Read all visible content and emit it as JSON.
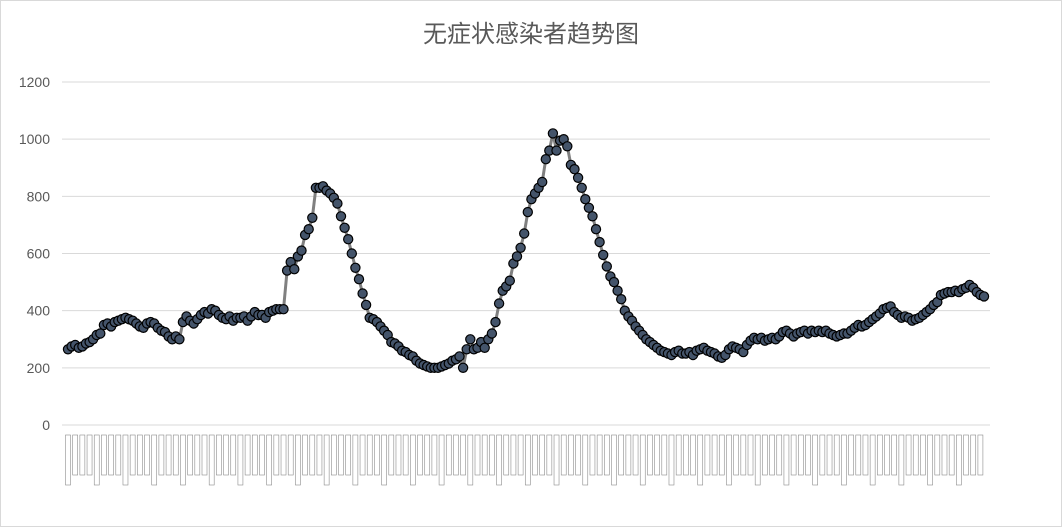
{
  "chart_data": {
    "type": "line",
    "title": "无症状感染者趋势图",
    "xlabel": "",
    "ylabel": "",
    "ylim": [
      0,
      1200
    ],
    "yticks": [
      0,
      200,
      400,
      600,
      800,
      1000,
      1200
    ],
    "grid": true,
    "legend": "none",
    "colors": {
      "line": "#808080",
      "marker_fill": "#44546a",
      "marker_edge": "#000000",
      "grid": "#d9d9d9",
      "text": "#595959"
    },
    "series": [
      {
        "values": [
          265,
          275,
          280,
          270,
          275,
          285,
          290,
          300,
          315,
          320,
          350,
          355,
          345,
          360,
          365,
          370,
          375,
          370,
          365,
          355,
          345,
          340,
          355,
          360,
          355,
          340,
          330,
          325,
          310,
          300,
          310,
          300,
          360,
          380,
          365,
          355,
          370,
          385,
          395,
          390,
          405,
          400,
          385,
          375,
          370,
          380,
          365,
          375,
          375,
          380,
          365,
          380,
          395,
          385,
          385,
          375,
          395,
          400,
          405,
          405,
          405,
          540,
          570,
          545,
          590,
          610,
          665,
          685,
          725,
          830,
          830,
          835,
          820,
          810,
          795,
          775,
          730,
          690,
          650,
          600,
          550,
          510,
          460,
          420,
          375,
          370,
          360,
          345,
          330,
          315,
          290,
          285,
          275,
          260,
          255,
          245,
          240,
          225,
          215,
          210,
          205,
          200,
          200,
          200,
          205,
          210,
          215,
          225,
          230,
          240,
          200,
          265,
          300,
          265,
          270,
          290,
          270,
          300,
          320,
          360,
          425,
          470,
          485,
          505,
          565,
          590,
          620,
          670,
          745,
          790,
          810,
          830,
          850,
          930,
          960,
          1020,
          960,
          995,
          1000,
          975,
          910,
          895,
          865,
          830,
          790,
          760,
          730,
          685,
          640,
          595,
          555,
          520,
          500,
          470,
          440,
          400,
          380,
          365,
          345,
          330,
          315,
          300,
          290,
          280,
          270,
          260,
          255,
          250,
          245,
          255,
          260,
          250,
          250,
          255,
          245,
          260,
          265,
          270,
          260,
          255,
          250,
          240,
          235,
          245,
          265,
          275,
          270,
          265,
          255,
          280,
          295,
          305,
          300,
          305,
          295,
          300,
          305,
          300,
          310,
          325,
          330,
          320,
          310,
          320,
          325,
          330,
          320,
          330,
          325,
          330,
          325,
          330,
          320,
          315,
          310,
          315,
          320,
          320,
          330,
          340,
          350,
          345,
          350,
          360,
          370,
          380,
          390,
          405,
          410,
          415,
          395,
          385,
          375,
          380,
          375,
          365,
          370,
          375,
          385,
          395,
          405,
          420,
          430,
          455,
          460,
          465,
          465,
          470,
          465,
          475,
          480,
          490,
          480,
          465,
          455,
          450
        ]
      }
    ],
    "x_tick_labels_note": "rotated date labels (illegible)"
  }
}
